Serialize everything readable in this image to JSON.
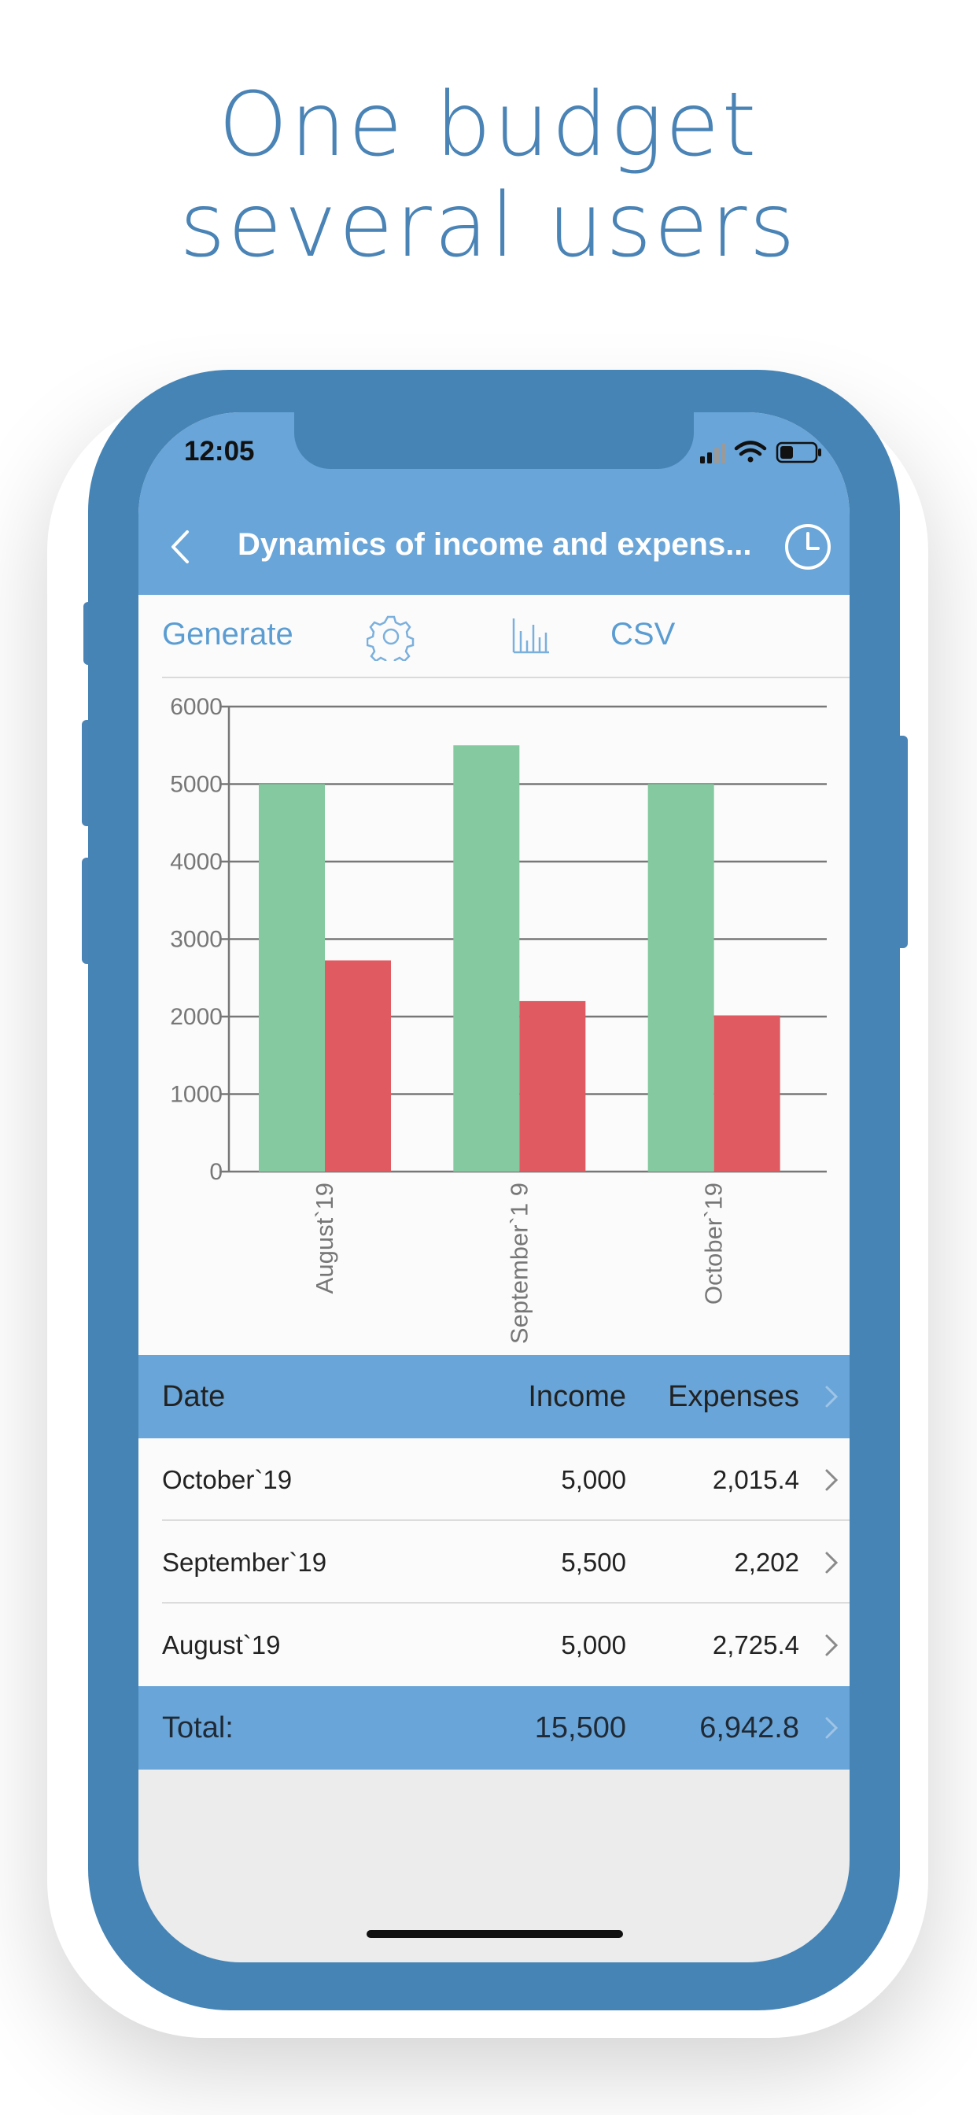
{
  "headline": {
    "line1": "One budget",
    "line2": "several users"
  },
  "status": {
    "time": "12:05"
  },
  "nav": {
    "title": "Dynamics of income and expens..."
  },
  "toolbar": {
    "generate": "Generate",
    "csv": "CSV"
  },
  "colors": {
    "income": "#84c99f",
    "expense": "#e05a61",
    "accent": "#69a5d8",
    "frame": "#4684b6"
  },
  "chart_data": {
    "type": "bar",
    "categories": [
      "August`19",
      "September`1 9",
      "October`19"
    ],
    "series": [
      {
        "values": [
          5000,
          5500,
          5000
        ],
        "color": "#84c99f"
      },
      {
        "values": [
          2725.4,
          2202,
          2015.4
        ],
        "color": "#e05a61"
      }
    ],
    "ylim": [
      0,
      6000
    ],
    "yticks": [
      "0",
      "1000",
      "2000",
      "3000",
      "4000",
      "5000",
      "6000"
    ],
    "grid": true
  },
  "table": {
    "headers": {
      "date": "Date",
      "income": "Income",
      "expenses": "Expenses"
    },
    "rows": [
      {
        "date": "October`19",
        "income": "5,000",
        "expenses": "2,015.4"
      },
      {
        "date": "September`19",
        "income": "5,500",
        "expenses": "2,202"
      },
      {
        "date": "August`19",
        "income": "5,000",
        "expenses": "2,725.4"
      }
    ],
    "total": {
      "label": "Total:",
      "income": "15,500",
      "expenses": "6,942.8"
    }
  }
}
